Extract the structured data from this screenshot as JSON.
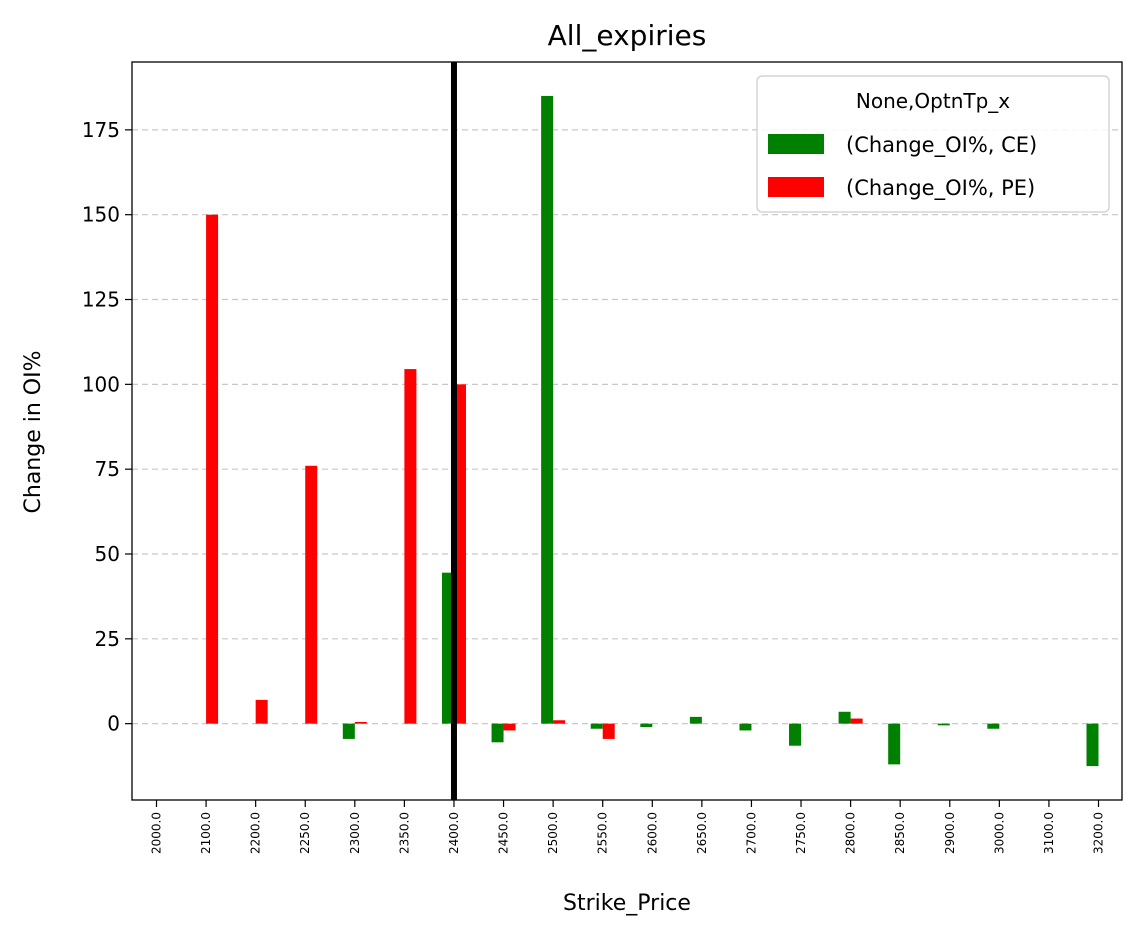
{
  "chart_data": {
    "type": "bar",
    "title": "All_expiries",
    "xlabel": "Strike_Price",
    "ylabel": "Change in OI%",
    "categories": [
      "2000.0",
      "2100.0",
      "2200.0",
      "2250.0",
      "2300.0",
      "2350.0",
      "2400.0",
      "2450.0",
      "2500.0",
      "2550.0",
      "2600.0",
      "2650.0",
      "2700.0",
      "2750.0",
      "2800.0",
      "2850.0",
      "2900.0",
      "3000.0",
      "3100.0",
      "3200.0"
    ],
    "series": [
      {
        "name": "(Change_OI%, CE)",
        "color": "#008000",
        "values": [
          0,
          0,
          0,
          0,
          -4.5,
          0,
          44.5,
          -5.5,
          185,
          -1.5,
          -1,
          2,
          -2,
          -6.5,
          3.5,
          -12,
          -0.5,
          -1.5,
          0,
          -12.5
        ]
      },
      {
        "name": "(Change_OI%, PE)",
        "color": "#ff0000",
        "values": [
          0,
          150,
          7,
          76,
          0.5,
          104.5,
          100,
          -2,
          1,
          -4.5,
          0,
          0,
          0,
          0,
          1.5,
          0,
          0,
          0,
          0,
          0
        ]
      }
    ],
    "ylim": [
      -22.5,
      195
    ],
    "yticks": [
      0,
      25,
      50,
      75,
      100,
      125,
      150,
      175
    ],
    "vline_category": "2400.0",
    "legend": {
      "title": "None,OptnTp_x",
      "placement": "top-right"
    },
    "grid": "horizontal dashed"
  }
}
